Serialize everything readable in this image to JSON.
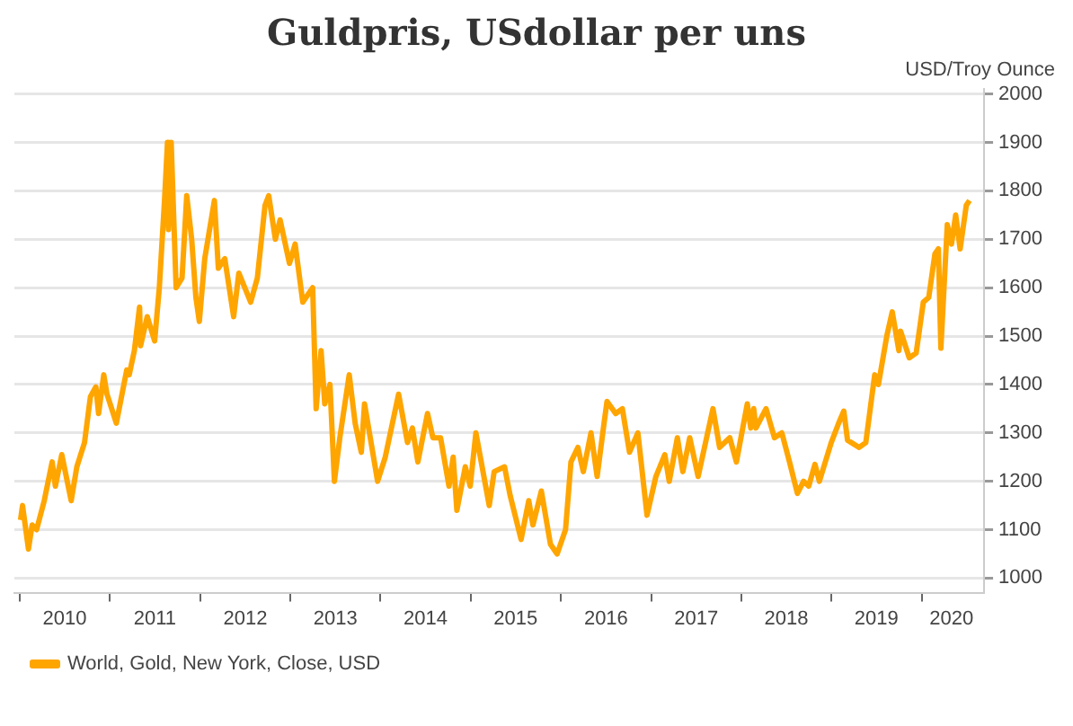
{
  "chart_data": {
    "type": "line",
    "title": "Guldpris, USdollar per uns",
    "ylabel": "USD/Troy Ounce",
    "xlim": [
      "2009-12-10",
      "2020-09-10"
    ],
    "ylim": [
      970,
      2010
    ],
    "yticks": [
      1000,
      1100,
      1200,
      1300,
      1400,
      1500,
      1600,
      1700,
      1800,
      1900,
      2000
    ],
    "xticks": [
      {
        "value": "2010-01-01",
        "label": null
      },
      {
        "value": "2010-07-02",
        "label": "2010"
      },
      {
        "value": "2011-01-01",
        "label": null
      },
      {
        "value": "2011-07-02",
        "label": "2011"
      },
      {
        "value": "2012-01-01",
        "label": null
      },
      {
        "value": "2012-07-02",
        "label": "2012"
      },
      {
        "value": "2013-01-01",
        "label": null
      },
      {
        "value": "2013-07-02",
        "label": "2013"
      },
      {
        "value": "2014-01-01",
        "label": null
      },
      {
        "value": "2014-07-02",
        "label": "2014"
      },
      {
        "value": "2015-01-01",
        "label": null
      },
      {
        "value": "2015-07-02",
        "label": "2015"
      },
      {
        "value": "2016-01-01",
        "label": null
      },
      {
        "value": "2016-07-02",
        "label": "2016"
      },
      {
        "value": "2017-01-01",
        "label": null
      },
      {
        "value": "2017-07-02",
        "label": "2017"
      },
      {
        "value": "2018-01-01",
        "label": null
      },
      {
        "value": "2018-07-02",
        "label": "2018"
      },
      {
        "value": "2019-01-01",
        "label": null
      },
      {
        "value": "2019-07-02",
        "label": "2019"
      },
      {
        "value": "2020-01-01",
        "label": null
      },
      {
        "value": "2020-05-01",
        "label": "2020"
      }
    ],
    "grid": "y",
    "legend": "bottom left",
    "marker": "none",
    "line_style": "solid",
    "x": [
      "2010-01-04",
      "2010-01-12",
      "2010-02-05",
      "2010-02-20",
      "2010-03-10",
      "2010-04-10",
      "2010-05-12",
      "2010-05-25",
      "2010-06-20",
      "2010-07-28",
      "2010-08-20",
      "2010-09-20",
      "2010-10-14",
      "2010-11-05",
      "2010-11-16",
      "2010-12-07",
      "2010-12-20",
      "2011-01-27",
      "2011-02-15",
      "2011-03-10",
      "2011-03-20",
      "2011-04-10",
      "2011-05-01",
      "2011-05-05",
      "2011-06-01",
      "2011-07-01",
      "2011-07-20",
      "2011-08-10",
      "2011-08-22",
      "2011-08-26",
      "2011-09-06",
      "2011-09-26",
      "2011-10-20",
      "2011-11-08",
      "2011-11-28",
      "2011-12-15",
      "2011-12-29",
      "2012-01-20",
      "2012-02-28",
      "2012-03-15",
      "2012-04-10",
      "2012-05-16",
      "2012-06-06",
      "2012-07-24",
      "2012-08-20",
      "2012-09-20",
      "2012-10-05",
      "2012-11-01",
      "2012-11-20",
      "2012-12-28",
      "2013-01-20",
      "2013-02-20",
      "2013-04-01",
      "2013-04-15",
      "2013-05-05",
      "2013-05-20",
      "2013-06-10",
      "2013-06-28",
      "2013-07-20",
      "2013-08-27",
      "2013-09-20",
      "2013-10-15",
      "2013-10-28",
      "2013-12-20",
      "2014-01-20",
      "2014-03-15",
      "2014-04-20",
      "2014-05-10",
      "2014-06-01",
      "2014-07-10",
      "2014-08-01",
      "2014-09-01",
      "2014-10-05",
      "2014-10-22",
      "2014-11-06",
      "2014-12-10",
      "2014-12-30",
      "2015-01-22",
      "2015-03-17",
      "2015-04-06",
      "2015-05-18",
      "2015-06-10",
      "2015-07-24",
      "2015-08-24",
      "2015-09-10",
      "2015-10-14",
      "2015-11-20",
      "2015-12-17",
      "2016-01-20",
      "2016-02-11",
      "2016-03-10",
      "2016-04-01",
      "2016-05-02",
      "2016-05-27",
      "2016-06-24",
      "2016-07-06",
      "2016-08-10",
      "2016-09-06",
      "2016-10-05",
      "2016-11-08",
      "2016-12-15",
      "2017-01-20",
      "2017-02-25",
      "2017-03-15",
      "2017-04-17",
      "2017-05-09",
      "2017-06-06",
      "2017-07-10",
      "2017-09-08",
      "2017-10-05",
      "2017-11-15",
      "2017-12-12",
      "2018-01-25",
      "2018-02-08",
      "2018-02-20",
      "2018-03-01",
      "2018-04-11",
      "2018-05-15",
      "2018-06-14",
      "2018-07-15",
      "2018-08-16",
      "2018-09-10",
      "2018-10-01",
      "2018-10-26",
      "2018-11-13",
      "2018-12-31",
      "2019-01-30",
      "2019-02-20",
      "2019-03-07",
      "2019-04-23",
      "2019-05-20",
      "2019-06-25",
      "2019-07-10",
      "2019-08-13",
      "2019-09-04",
      "2019-10-01",
      "2019-10-08",
      "2019-11-12",
      "2019-12-10",
      "2020-01-08",
      "2020-01-30",
      "2020-02-24",
      "2020-03-09",
      "2020-03-19",
      "2020-04-14",
      "2020-05-01",
      "2020-05-18",
      "2020-06-05",
      "2020-06-30",
      "2020-07-13"
    ],
    "series": [
      {
        "name": "World, Gold, New York, Close, USD",
        "color": "#ffa500",
        "values": [
          1120,
          1150,
          1060,
          1110,
          1100,
          1160,
          1240,
          1190,
          1255,
          1160,
          1230,
          1280,
          1375,
          1395,
          1340,
          1420,
          1380,
          1320,
          1370,
          1430,
          1420,
          1470,
          1560,
          1480,
          1540,
          1490,
          1600,
          1780,
          1900,
          1720,
          1900,
          1600,
          1620,
          1790,
          1700,
          1580,
          1530,
          1660,
          1780,
          1640,
          1660,
          1540,
          1630,
          1570,
          1620,
          1770,
          1790,
          1700,
          1740,
          1650,
          1690,
          1570,
          1600,
          1350,
          1470,
          1360,
          1400,
          1200,
          1290,
          1420,
          1320,
          1260,
          1360,
          1200,
          1250,
          1380,
          1280,
          1310,
          1240,
          1340,
          1290,
          1290,
          1190,
          1250,
          1140,
          1230,
          1190,
          1300,
          1150,
          1220,
          1230,
          1170,
          1080,
          1160,
          1110,
          1180,
          1070,
          1050,
          1100,
          1240,
          1270,
          1220,
          1300,
          1210,
          1320,
          1365,
          1340,
          1350,
          1260,
          1300,
          1130,
          1210,
          1255,
          1200,
          1290,
          1220,
          1290,
          1210,
          1350,
          1270,
          1290,
          1240,
          1360,
          1310,
          1350,
          1310,
          1350,
          1290,
          1300,
          1240,
          1175,
          1200,
          1190,
          1235,
          1200,
          1280,
          1320,
          1345,
          1285,
          1270,
          1280,
          1420,
          1400,
          1500,
          1550,
          1470,
          1510,
          1455,
          1465,
          1570,
          1580,
          1670,
          1680,
          1475,
          1730,
          1690,
          1750,
          1680,
          1770,
          1780
        ]
      }
    ]
  }
}
